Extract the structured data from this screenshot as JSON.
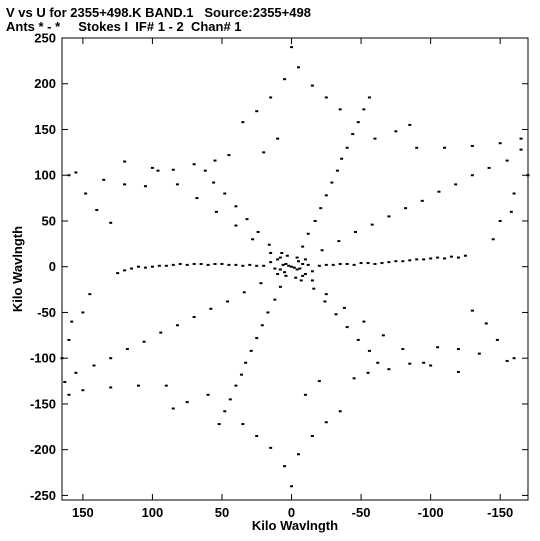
{
  "header": {
    "line1": "V vs U for 2355+498.K BAND.1   Source:2355+498",
    "line2": "Ants * - *     Stokes I  IF# 1 - 2  Chan# 1"
  },
  "chart_data": {
    "type": "scatter",
    "xlabel": "Kilo Wavlngth",
    "ylabel": "Kilo Wavlngth",
    "xlim": [
      165,
      -170
    ],
    "ylim": [
      -255,
      250
    ],
    "x_ticks": [
      150,
      100,
      50,
      0,
      -50,
      -100,
      -150
    ],
    "y_ticks": [
      250,
      200,
      150,
      100,
      50,
      0,
      -50,
      -100,
      -150,
      -200,
      -250
    ],
    "grid": false,
    "series": [
      {
        "points": [
          [
            0,
            0
          ],
          [
            2,
            1
          ],
          [
            -2,
            -1
          ],
          [
            4,
            3
          ],
          [
            -4,
            -3
          ],
          [
            6,
            2
          ],
          [
            -6,
            -2
          ],
          [
            8,
            -3
          ],
          [
            -8,
            3
          ],
          [
            5,
            -6
          ],
          [
            -5,
            6
          ],
          [
            10,
            8
          ],
          [
            -10,
            -8
          ],
          [
            12,
            -2
          ],
          [
            -12,
            2
          ],
          [
            3,
            12
          ],
          [
            -3,
            -12
          ],
          [
            15,
            5
          ],
          [
            -15,
            -5
          ],
          [
            7,
            15
          ],
          [
            -7,
            -15
          ],
          [
            20,
            1
          ],
          [
            25,
            1
          ],
          [
            30,
            2
          ],
          [
            35,
            1
          ],
          [
            40,
            2
          ],
          [
            45,
            2
          ],
          [
            50,
            3
          ],
          [
            55,
            3
          ],
          [
            60,
            2
          ],
          [
            65,
            3
          ],
          [
            70,
            3
          ],
          [
            75,
            2
          ],
          [
            80,
            3
          ],
          [
            85,
            2
          ],
          [
            90,
            1
          ],
          [
            95,
            1
          ],
          [
            100,
            0
          ],
          [
            105,
            -1
          ],
          [
            110,
            0
          ],
          [
            115,
            -2
          ],
          [
            120,
            -4
          ],
          [
            125,
            -7
          ],
          [
            -20,
            1
          ],
          [
            -25,
            2
          ],
          [
            -30,
            2
          ],
          [
            -35,
            3
          ],
          [
            -40,
            3
          ],
          [
            -45,
            2
          ],
          [
            -50,
            4
          ],
          [
            -55,
            4
          ],
          [
            -60,
            3
          ],
          [
            -65,
            4
          ],
          [
            -70,
            5
          ],
          [
            -75,
            6
          ],
          [
            -80,
            6
          ],
          [
            -85,
            7
          ],
          [
            -90,
            8
          ],
          [
            -95,
            8
          ],
          [
            -100,
            9
          ],
          [
            -105,
            10
          ],
          [
            -110,
            9
          ],
          [
            -115,
            11
          ],
          [
            -120,
            10
          ],
          [
            -125,
            12
          ],
          [
            -4,
            10
          ],
          [
            -8,
            22
          ],
          [
            -12,
            36
          ],
          [
            -17,
            50
          ],
          [
            -21,
            64
          ],
          [
            -25,
            78
          ],
          [
            -29,
            92
          ],
          [
            -33,
            105
          ],
          [
            -36,
            118
          ],
          [
            -40,
            130
          ],
          [
            -44,
            145
          ],
          [
            -48,
            158
          ],
          [
            -52,
            172
          ],
          [
            -56,
            185
          ],
          [
            4,
            -10
          ],
          [
            8,
            -22
          ],
          [
            12,
            -36
          ],
          [
            17,
            -50
          ],
          [
            21,
            -64
          ],
          [
            25,
            -78
          ],
          [
            29,
            -92
          ],
          [
            33,
            -105
          ],
          [
            36,
            -118
          ],
          [
            40,
            -130
          ],
          [
            44,
            -145
          ],
          [
            48,
            -158
          ],
          [
            52,
            -172
          ],
          [
            -10,
            8
          ],
          [
            -22,
            18
          ],
          [
            -34,
            28
          ],
          [
            -46,
            38
          ],
          [
            -58,
            46
          ],
          [
            -70,
            55
          ],
          [
            -82,
            64
          ],
          [
            -94,
            72
          ],
          [
            -106,
            82
          ],
          [
            -118,
            90
          ],
          [
            -130,
            100
          ],
          [
            -142,
            108
          ],
          [
            -155,
            116
          ],
          [
            -165,
            128
          ],
          [
            10,
            -8
          ],
          [
            22,
            -18
          ],
          [
            34,
            -28
          ],
          [
            46,
            -38
          ],
          [
            58,
            -46
          ],
          [
            70,
            -55
          ],
          [
            82,
            -64
          ],
          [
            94,
            -72
          ],
          [
            106,
            -82
          ],
          [
            118,
            -90
          ],
          [
            130,
            -100
          ],
          [
            142,
            -108
          ],
          [
            155,
            -116
          ],
          [
            163,
            -126
          ],
          [
            8,
            10
          ],
          [
            16,
            24
          ],
          [
            24,
            38
          ],
          [
            32,
            52
          ],
          [
            40,
            66
          ],
          [
            48,
            80
          ],
          [
            56,
            92
          ],
          [
            62,
            105
          ],
          [
            -8,
            -10
          ],
          [
            -16,
            -24
          ],
          [
            -24,
            -38
          ],
          [
            -32,
            -52
          ],
          [
            -40,
            -66
          ],
          [
            -48,
            -80
          ],
          [
            -56,
            -92
          ],
          [
            -62,
            -105
          ],
          [
            -15,
            -15
          ],
          [
            -25,
            -30
          ],
          [
            -38,
            -45
          ],
          [
            -52,
            -60
          ],
          [
            -66,
            -75
          ],
          [
            -80,
            -90
          ],
          [
            -95,
            -105
          ],
          [
            15,
            15
          ],
          [
            28,
            30
          ],
          [
            40,
            45
          ],
          [
            54,
            60
          ],
          [
            68,
            75
          ],
          [
            82,
            90
          ],
          [
            96,
            105
          ],
          [
            0,
            240
          ],
          [
            -5,
            218
          ],
          [
            5,
            205
          ],
          [
            -15,
            198
          ],
          [
            -25,
            185
          ],
          [
            -35,
            172
          ],
          [
            15,
            185
          ],
          [
            25,
            170
          ],
          [
            35,
            158
          ],
          [
            10,
            140
          ],
          [
            20,
            125
          ],
          [
            0,
            -240
          ],
          [
            5,
            -218
          ],
          [
            -5,
            -205
          ],
          [
            15,
            -198
          ],
          [
            25,
            -185
          ],
          [
            35,
            -172
          ],
          [
            -15,
            -185
          ],
          [
            -25,
            -170
          ],
          [
            -35,
            -158
          ],
          [
            -10,
            -140
          ],
          [
            -20,
            -125
          ],
          [
            160,
            100
          ],
          [
            148,
            80
          ],
          [
            140,
            62
          ],
          [
            130,
            48
          ],
          [
            155,
            103
          ],
          [
            135,
            95
          ],
          [
            120,
            90
          ],
          [
            105,
            88
          ],
          [
            -160,
            -100
          ],
          [
            -148,
            -80
          ],
          [
            -140,
            -62
          ],
          [
            -130,
            -48
          ],
          [
            -155,
            -103
          ],
          [
            -135,
            -95
          ],
          [
            -120,
            -90
          ],
          [
            -105,
            -88
          ],
          [
            -90,
            130
          ],
          [
            -110,
            130
          ],
          [
            -130,
            132
          ],
          [
            -150,
            135
          ],
          [
            -165,
            140
          ],
          [
            -60,
            140
          ],
          [
            -75,
            148
          ],
          [
            -85,
            155
          ],
          [
            90,
            -130
          ],
          [
            110,
            -130
          ],
          [
            130,
            -132
          ],
          [
            150,
            -135
          ],
          [
            160,
            -140
          ],
          [
            60,
            -140
          ],
          [
            75,
            -148
          ],
          [
            85,
            -155
          ],
          [
            120,
            115
          ],
          [
            100,
            108
          ],
          [
            85,
            106
          ],
          [
            70,
            112
          ],
          [
            55,
            116
          ],
          [
            45,
            122
          ],
          [
            -120,
            -115
          ],
          [
            -100,
            -108
          ],
          [
            -85,
            -106
          ],
          [
            -70,
            -112
          ],
          [
            -55,
            -116
          ],
          [
            -45,
            -122
          ],
          [
            -145,
            30
          ],
          [
            -150,
            50
          ],
          [
            -158,
            60
          ],
          [
            -160,
            80
          ],
          [
            -170,
            100
          ],
          [
            145,
            -30
          ],
          [
            150,
            -50
          ],
          [
            158,
            -60
          ],
          [
            160,
            -80
          ],
          [
            165,
            -100
          ]
        ]
      }
    ]
  }
}
